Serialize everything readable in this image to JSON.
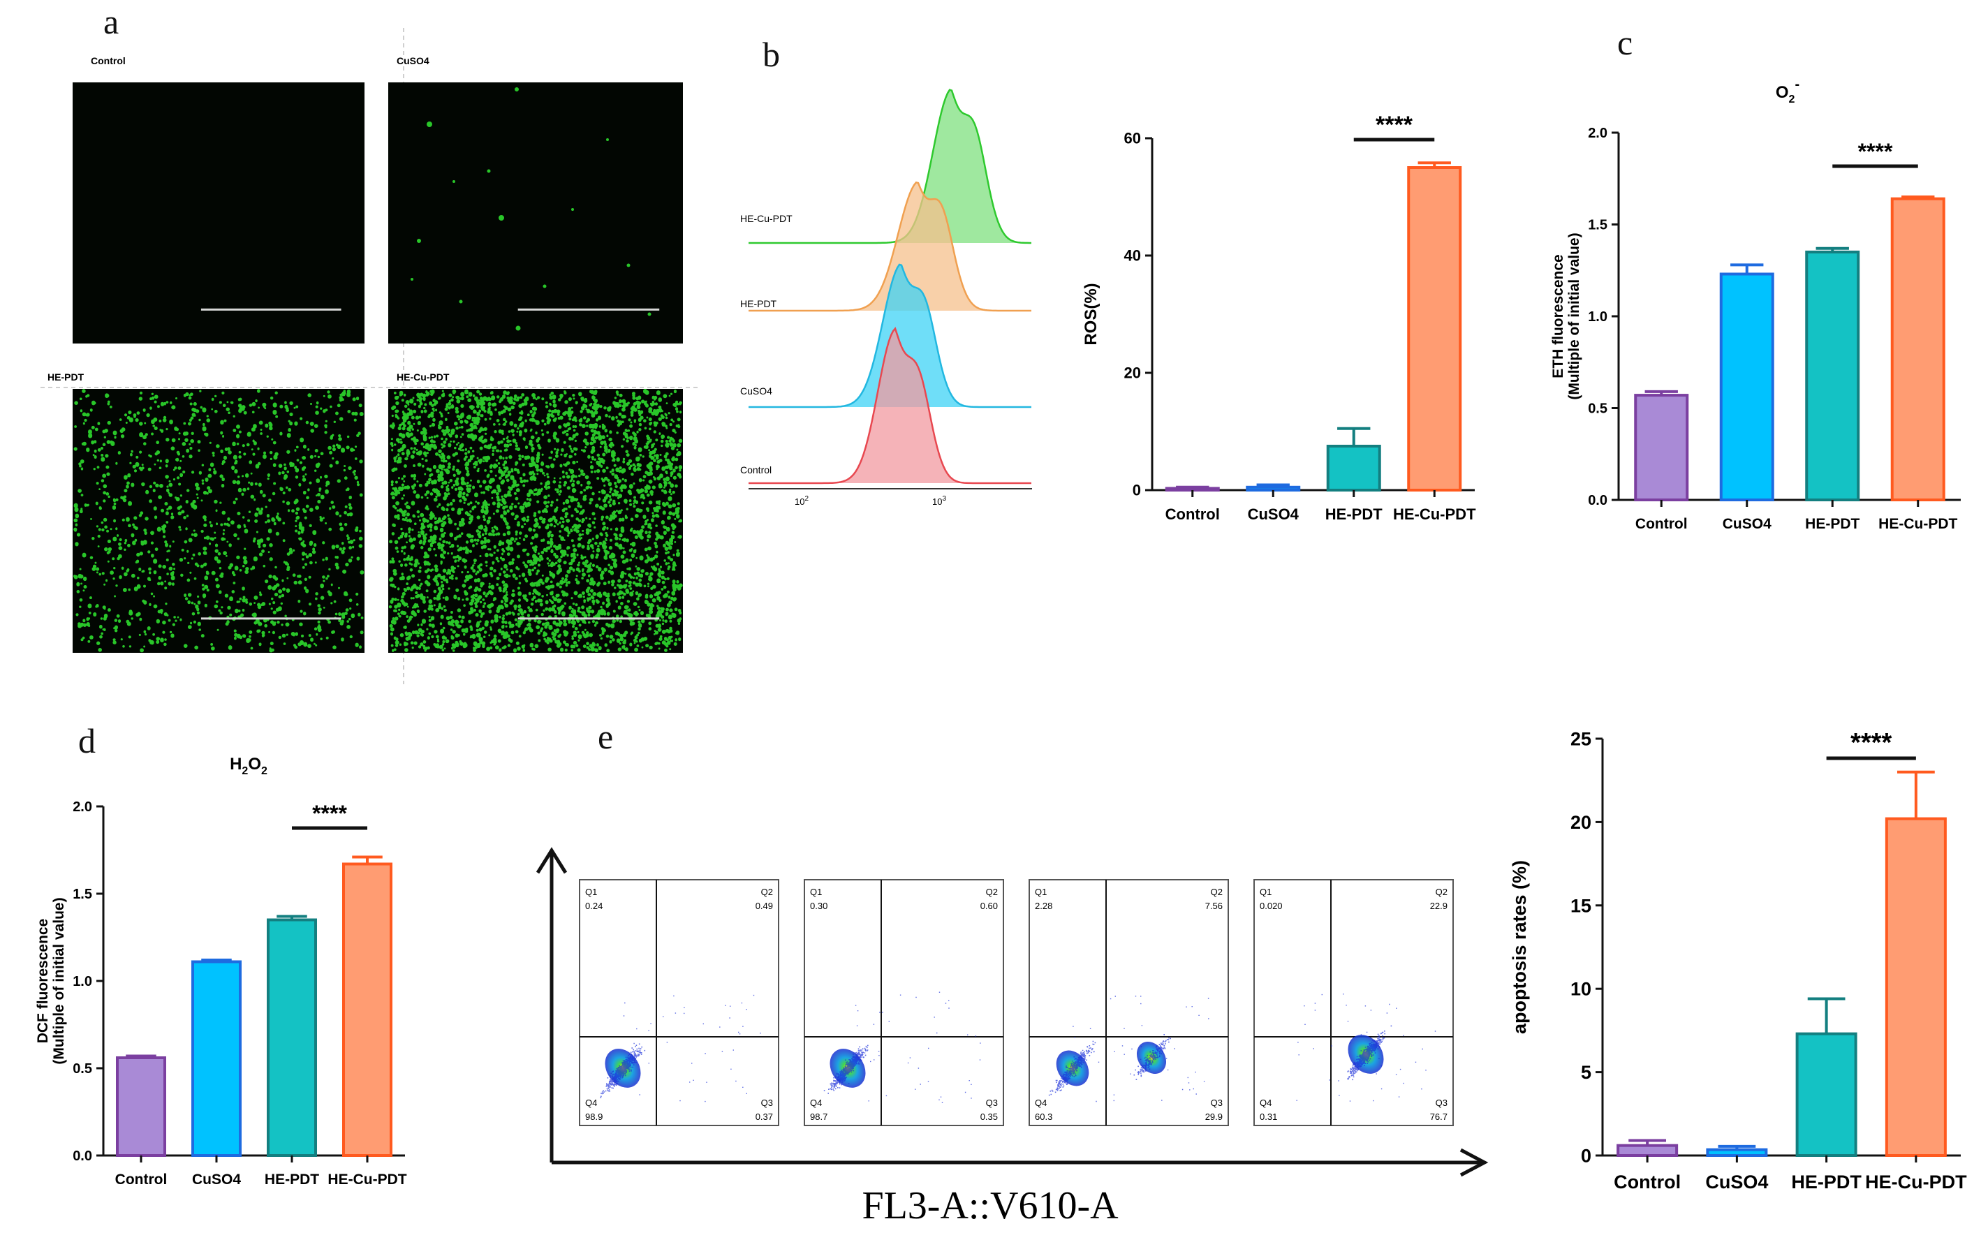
{
  "panel_labels": {
    "a": "a",
    "b": "b",
    "c": "c",
    "d": "d",
    "e": "e"
  },
  "colors": {
    "control": "#7B3FA0",
    "control_fill": "#A98AD6",
    "cuso4": "#1E6BE0",
    "cuso4_fill": "#00C2FF",
    "hepdt": "#137F80",
    "hepdt_fill": "#14C2C4",
    "hecupdt": "#FF5A1F",
    "hecupdt_fill": "#FF9C72",
    "fluor": "#2DDC2D",
    "micro_bg": "#020602"
  },
  "micrographs": [
    {
      "label": "Control",
      "density": "none"
    },
    {
      "label": "CuSO4",
      "density": "sparse"
    },
    {
      "label": "HE-PDT",
      "density": "medium"
    },
    {
      "label": "HE-Cu-PDT",
      "density": "dense"
    }
  ],
  "histogram": {
    "labels": [
      "HE-Cu-PDT",
      "HE-PDT",
      "CuSO4",
      "Control"
    ],
    "xticks": [
      {
        "base": "10",
        "exp": "2"
      },
      {
        "base": "10",
        "exp": "3"
      }
    ]
  },
  "flow": {
    "xlabel": "FL3-A::V610-A",
    "plots": [
      {
        "q1": "0.24",
        "q2": "0.49",
        "q3": "0.37",
        "q4": "98.9"
      },
      {
        "q1": "0.30",
        "q2": "0.60",
        "q3": "0.35",
        "q4": "98.7"
      },
      {
        "q1": "2.28",
        "q2": "7.56",
        "q3": "29.9",
        "q4": "60.3"
      },
      {
        "q1": "0.020",
        "q2": "22.9",
        "q3": "76.7",
        "q4": "0.31"
      }
    ],
    "quadrant_names": {
      "q1": "Q1",
      "q2": "Q2",
      "q3": "Q3",
      "q4": "Q4"
    }
  },
  "chart_data": [
    {
      "id": "b",
      "type": "bar",
      "categories": [
        "Control",
        "CuSO4",
        "HE-PDT",
        "HE-Cu-PDT"
      ],
      "values": [
        0.3,
        0.5,
        7.5,
        55
      ],
      "errors": [
        0.2,
        0.4,
        3,
        0.8
      ],
      "ylabel": "ROS(%)",
      "ylim": [
        0,
        60
      ],
      "yticks": [
        0,
        20,
        40,
        60
      ],
      "significance": "****"
    },
    {
      "id": "c",
      "type": "bar",
      "title": "O2-",
      "categories": [
        "Control",
        "CuSO4",
        "HE-PDT",
        "HE-Cu-PDT"
      ],
      "values": [
        0.57,
        1.23,
        1.35,
        1.64
      ],
      "errors": [
        0.02,
        0.05,
        0.02,
        0.01
      ],
      "ylabel_line1": "ETH  fluorescence",
      "ylabel_line2": "(Multiple of initial value)",
      "ylim": [
        0,
        2.0
      ],
      "yticks": [
        0.0,
        0.5,
        1.0,
        1.5,
        2.0
      ],
      "significance": "****"
    },
    {
      "id": "d",
      "type": "bar",
      "title": "H2O2",
      "categories": [
        "Control",
        "CuSO4",
        "HE-PDT",
        "HE-Cu-PDT"
      ],
      "values": [
        0.56,
        1.11,
        1.35,
        1.67
      ],
      "errors": [
        0.01,
        0.01,
        0.02,
        0.04
      ],
      "ylabel_line1": "DCF  fluorescence",
      "ylabel_line2": "(Multiple of initial value)",
      "ylim": [
        0,
        2.0
      ],
      "yticks": [
        0.0,
        0.5,
        1.0,
        1.5,
        2.0
      ],
      "significance": "****"
    },
    {
      "id": "e",
      "type": "bar",
      "categories": [
        "Control",
        "CuSO4",
        "HE-PDT",
        "HE-Cu-PDT"
      ],
      "values": [
        0.6,
        0.35,
        7.3,
        20.2
      ],
      "errors": [
        0.3,
        0.2,
        2.1,
        2.8
      ],
      "ylabel": "apoptosis rates  (%)",
      "ylim": [
        0,
        25
      ],
      "yticks": [
        0,
        5,
        10,
        15,
        20,
        25
      ],
      "significance": "****"
    }
  ]
}
